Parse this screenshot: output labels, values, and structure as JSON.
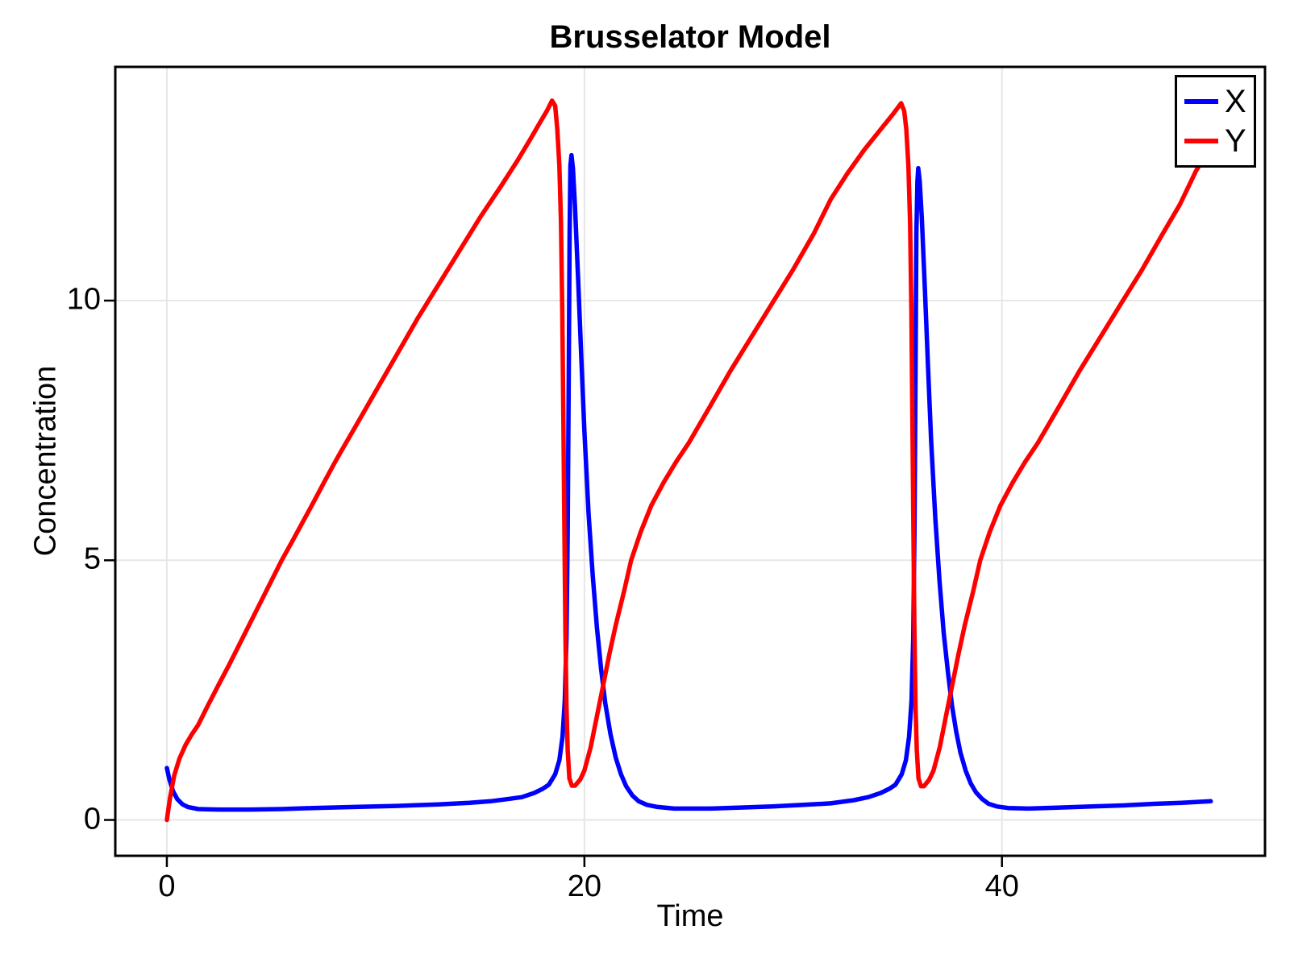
{
  "title": "Brusselator Model",
  "axes": {
    "xlabel": "Time",
    "ylabel": "Concentration",
    "x_ticks": [
      0,
      20,
      40
    ],
    "y_ticks": [
      0,
      5,
      10
    ],
    "xlim": [
      -2.47,
      52.6
    ],
    "ylim": [
      -0.69,
      14.5
    ]
  },
  "legend": {
    "position": "top-right",
    "entries": [
      {
        "label": "X",
        "color": "#0000ff"
      },
      {
        "label": "Y",
        "color": "#ff0000"
      }
    ]
  },
  "style_colors": {
    "frame": "#000000",
    "grid": "#e7e7e7",
    "background": "#ffffff",
    "text": "#000000"
  },
  "chart_data": {
    "type": "line",
    "title": "Brusselator Model",
    "xlabel": "Time",
    "ylabel": "Concentration",
    "x_ticks": [
      0,
      20,
      40
    ],
    "y_ticks": [
      0,
      5,
      10
    ],
    "xlim": [
      -2.47,
      52.6
    ],
    "ylim": [
      -0.69,
      14.5
    ],
    "grid": true,
    "legend_position": "top-right",
    "line_width": 5.5,
    "series": [
      {
        "name": "X",
        "color": "#0000ff",
        "points": [
          [
            0,
            1.0
          ],
          [
            0.12,
            0.78
          ],
          [
            0.3,
            0.55
          ],
          [
            0.5,
            0.4
          ],
          [
            0.75,
            0.3
          ],
          [
            1.0,
            0.25
          ],
          [
            1.5,
            0.21
          ],
          [
            2.5,
            0.2
          ],
          [
            4,
            0.2
          ],
          [
            5.5,
            0.21
          ],
          [
            7,
            0.23
          ],
          [
            9,
            0.25
          ],
          [
            11,
            0.27
          ],
          [
            13,
            0.3
          ],
          [
            14.5,
            0.33
          ],
          [
            15.5,
            0.36
          ],
          [
            16.3,
            0.4
          ],
          [
            17,
            0.44
          ],
          [
            17.6,
            0.52
          ],
          [
            18.0,
            0.6
          ],
          [
            18.3,
            0.68
          ],
          [
            18.6,
            0.88
          ],
          [
            18.8,
            1.15
          ],
          [
            18.95,
            1.6
          ],
          [
            19.06,
            2.3
          ],
          [
            19.14,
            3.5
          ],
          [
            19.2,
            5.5
          ],
          [
            19.25,
            8.5
          ],
          [
            19.29,
            11.3
          ],
          [
            19.33,
            12.6
          ],
          [
            19.38,
            12.8
          ],
          [
            19.45,
            12.55
          ],
          [
            19.55,
            11.8
          ],
          [
            19.7,
            10.4
          ],
          [
            19.85,
            8.9
          ],
          [
            20.0,
            7.5
          ],
          [
            20.2,
            5.9
          ],
          [
            20.4,
            4.7
          ],
          [
            20.6,
            3.7
          ],
          [
            20.8,
            2.9
          ],
          [
            21.0,
            2.25
          ],
          [
            21.25,
            1.65
          ],
          [
            21.5,
            1.2
          ],
          [
            21.75,
            0.88
          ],
          [
            22.0,
            0.65
          ],
          [
            22.3,
            0.47
          ],
          [
            22.6,
            0.36
          ],
          [
            23.0,
            0.29
          ],
          [
            23.5,
            0.25
          ],
          [
            24.3,
            0.22
          ],
          [
            26,
            0.22
          ],
          [
            27.5,
            0.24
          ],
          [
            29,
            0.26
          ],
          [
            30.5,
            0.29
          ],
          [
            31.8,
            0.32
          ],
          [
            32.9,
            0.38
          ],
          [
            33.6,
            0.44
          ],
          [
            34.2,
            0.52
          ],
          [
            34.6,
            0.6
          ],
          [
            34.9,
            0.68
          ],
          [
            35.2,
            0.88
          ],
          [
            35.4,
            1.15
          ],
          [
            35.55,
            1.6
          ],
          [
            35.67,
            2.3
          ],
          [
            35.75,
            3.5
          ],
          [
            35.81,
            5.5
          ],
          [
            35.86,
            8.5
          ],
          [
            35.9,
            11.3
          ],
          [
            35.95,
            12.3
          ],
          [
            35.99,
            12.55
          ],
          [
            36.06,
            12.3
          ],
          [
            36.16,
            11.6
          ],
          [
            36.31,
            10.2
          ],
          [
            36.46,
            8.7
          ],
          [
            36.61,
            7.3
          ],
          [
            36.81,
            5.8
          ],
          [
            37.01,
            4.6
          ],
          [
            37.21,
            3.6
          ],
          [
            37.41,
            2.85
          ],
          [
            37.61,
            2.2
          ],
          [
            37.81,
            1.7
          ],
          [
            38.01,
            1.3
          ],
          [
            38.26,
            0.95
          ],
          [
            38.51,
            0.7
          ],
          [
            38.76,
            0.53
          ],
          [
            39.06,
            0.4
          ],
          [
            39.36,
            0.31
          ],
          [
            39.76,
            0.26
          ],
          [
            40.3,
            0.23
          ],
          [
            41.3,
            0.22
          ],
          [
            42.8,
            0.24
          ],
          [
            44.3,
            0.26
          ],
          [
            45.8,
            0.28
          ],
          [
            47.3,
            0.31
          ],
          [
            48.6,
            0.33
          ],
          [
            50,
            0.36
          ]
        ]
      },
      {
        "name": "Y",
        "color": "#ff0000",
        "points": [
          [
            0,
            0.0
          ],
          [
            0.15,
            0.42
          ],
          [
            0.35,
            0.85
          ],
          [
            0.6,
            1.18
          ],
          [
            0.9,
            1.45
          ],
          [
            1.2,
            1.65
          ],
          [
            1.5,
            1.83
          ],
          [
            2,
            2.23
          ],
          [
            2.5,
            2.62
          ],
          [
            3,
            3.0
          ],
          [
            3.5,
            3.4
          ],
          [
            4,
            3.8
          ],
          [
            4.5,
            4.2
          ],
          [
            5,
            4.6
          ],
          [
            5.5,
            5.0
          ],
          [
            6,
            5.36
          ],
          [
            6.5,
            5.73
          ],
          [
            7,
            6.1
          ],
          [
            7.5,
            6.48
          ],
          [
            8,
            6.85
          ],
          [
            8.35,
            7.1
          ],
          [
            9,
            7.55
          ],
          [
            10,
            8.25
          ],
          [
            11,
            8.95
          ],
          [
            12,
            9.65
          ],
          [
            13,
            10.3
          ],
          [
            14,
            10.95
          ],
          [
            15,
            11.6
          ],
          [
            16,
            12.2
          ],
          [
            16.8,
            12.7
          ],
          [
            17.4,
            13.1
          ],
          [
            17.9,
            13.45
          ],
          [
            18.2,
            13.65
          ],
          [
            18.45,
            13.85
          ],
          [
            18.6,
            13.75
          ],
          [
            18.7,
            13.3
          ],
          [
            18.8,
            12.6
          ],
          [
            18.88,
            11.5
          ],
          [
            18.94,
            9.8
          ],
          [
            18.99,
            7.8
          ],
          [
            19.04,
            5.6
          ],
          [
            19.09,
            3.6
          ],
          [
            19.14,
            2.2
          ],
          [
            19.2,
            1.35
          ],
          [
            19.28,
            0.8
          ],
          [
            19.4,
            0.66
          ],
          [
            19.55,
            0.66
          ],
          [
            19.8,
            0.78
          ],
          [
            20.0,
            0.95
          ],
          [
            20.3,
            1.4
          ],
          [
            20.6,
            2.0
          ],
          [
            20.9,
            2.6
          ],
          [
            21.2,
            3.2
          ],
          [
            21.5,
            3.75
          ],
          [
            21.9,
            4.4
          ],
          [
            22.24,
            5.0
          ],
          [
            22.7,
            5.55
          ],
          [
            23.2,
            6.05
          ],
          [
            23.8,
            6.5
          ],
          [
            24.4,
            6.9
          ],
          [
            25,
            7.26
          ],
          [
            26,
            7.95
          ],
          [
            27,
            8.65
          ],
          [
            28,
            9.3
          ],
          [
            29,
            9.95
          ],
          [
            30,
            10.6
          ],
          [
            31,
            11.3
          ],
          [
            31.8,
            11.95
          ],
          [
            32.6,
            12.45
          ],
          [
            33.4,
            12.9
          ],
          [
            34.2,
            13.3
          ],
          [
            34.8,
            13.6
          ],
          [
            35.17,
            13.8
          ],
          [
            35.32,
            13.65
          ],
          [
            35.42,
            13.3
          ],
          [
            35.52,
            12.6
          ],
          [
            35.6,
            11.5
          ],
          [
            35.66,
            9.8
          ],
          [
            35.71,
            7.8
          ],
          [
            35.76,
            5.6
          ],
          [
            35.81,
            3.6
          ],
          [
            35.86,
            2.2
          ],
          [
            35.92,
            1.35
          ],
          [
            36.0,
            0.8
          ],
          [
            36.12,
            0.65
          ],
          [
            36.27,
            0.65
          ],
          [
            36.52,
            0.78
          ],
          [
            36.72,
            0.95
          ],
          [
            37.02,
            1.4
          ],
          [
            37.32,
            2.0
          ],
          [
            37.62,
            2.6
          ],
          [
            37.92,
            3.2
          ],
          [
            38.22,
            3.75
          ],
          [
            38.62,
            4.4
          ],
          [
            38.96,
            5.0
          ],
          [
            39.42,
            5.55
          ],
          [
            39.92,
            6.05
          ],
          [
            40.52,
            6.5
          ],
          [
            41.12,
            6.9
          ],
          [
            41.72,
            7.26
          ],
          [
            42.72,
            7.95
          ],
          [
            43.72,
            8.65
          ],
          [
            44.72,
            9.3
          ],
          [
            45.72,
            9.95
          ],
          [
            46.72,
            10.6
          ],
          [
            47.72,
            11.3
          ],
          [
            48.52,
            11.85
          ],
          [
            49.3,
            12.5
          ],
          [
            50,
            12.95
          ]
        ]
      }
    ]
  }
}
